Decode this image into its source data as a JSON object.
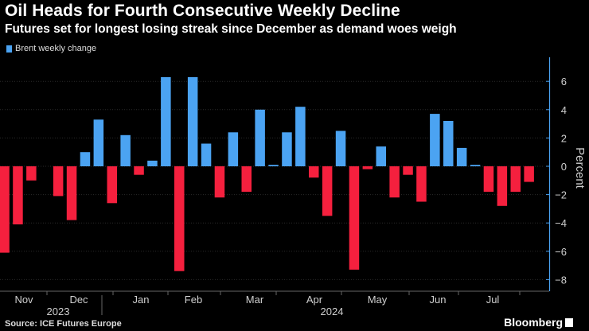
{
  "header": {
    "title": "Oil Heads for Fourth Consecutive Weekly Decline",
    "subtitle": "Futures set for longest losing streak since December as demand woes weigh"
  },
  "legend": {
    "label": "Brent weekly change"
  },
  "footer": {
    "source": "Source: ICE Futures Europe",
    "brand": "Bloomberg"
  },
  "colors": {
    "positive": "#4ba3f2",
    "negative": "#f5203e",
    "background": "#000000"
  },
  "chart_data": {
    "type": "bar",
    "ylabel": "Percent",
    "ylim": [
      -8,
      7
    ],
    "yticks": [
      6,
      4,
      2,
      0,
      -2,
      -4,
      -6,
      -8
    ],
    "legend_position": "top-left",
    "series": [
      {
        "name": "Brent weekly change",
        "values": [
          -6.1,
          -4.1,
          -1.0,
          null,
          -2.1,
          -3.8,
          1.0,
          3.3,
          -2.6,
          2.2,
          -0.6,
          0.4,
          6.3,
          -7.4,
          6.3,
          1.6,
          -2.2,
          2.4,
          -1.8,
          4.0,
          0.1,
          2.4,
          4.2,
          -0.8,
          -3.5,
          2.5,
          -7.3,
          -0.2,
          1.4,
          -2.2,
          -0.6,
          -2.5,
          3.7,
          3.2,
          1.3,
          0.1,
          -1.8,
          -2.8,
          -1.8,
          -1.1
        ]
      }
    ],
    "x_month_labels": [
      "Nov",
      "Dec",
      "Jan",
      "Feb",
      "Mar",
      "Apr",
      "May",
      "Jun",
      "Jul"
    ],
    "x_year_labels": [
      "2023",
      "2024"
    ]
  }
}
